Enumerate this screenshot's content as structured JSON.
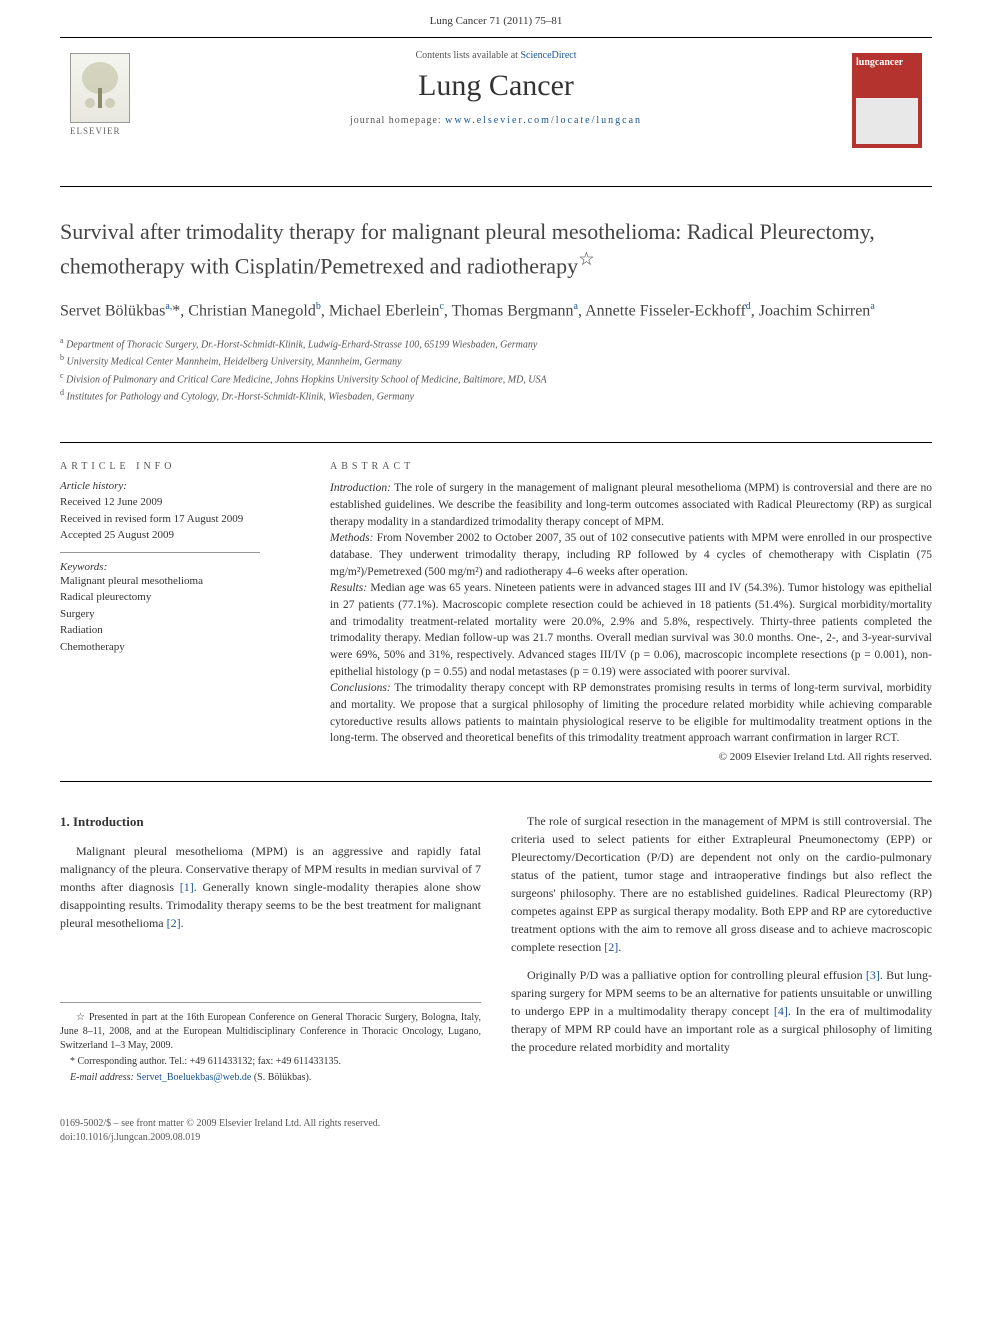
{
  "header": {
    "citation": "Lung Cancer 71 (2011) 75–81"
  },
  "masthead": {
    "contents_prefix": "Contents lists available at ",
    "contents_link": "ScienceDirect",
    "journal_title": "Lung Cancer",
    "homepage_prefix": "journal homepage: ",
    "homepage_url": "www.elsevier.com/locate/lungcan",
    "elsevier_label": "ELSEVIER",
    "cover_title": "lungcancer"
  },
  "article": {
    "title": "Survival after trimodality therapy for malignant pleural mesothelioma: Radical Pleurectomy, chemotherapy with Cisplatin/Pemetrexed and radiotherapy",
    "title_note_mark": "☆",
    "authors_html": "Servet Bölükbas<sup>a,</sup>*, Christian Manegold<sup>b</sup>, Michael Eberlein<sup>c</sup>, Thomas Bergmann<sup>a</sup>, Annette Fisseler-Eckhoff<sup>d</sup>, Joachim Schirren<sup>a</sup>",
    "affiliations": [
      {
        "mark": "a",
        "text": "Department of Thoracic Surgery, Dr.-Horst-Schmidt-Klinik, Ludwig-Erhard-Strasse 100, 65199 Wiesbaden, Germany"
      },
      {
        "mark": "b",
        "text": "University Medical Center Mannheim, Heidelberg University, Mannheim, Germany"
      },
      {
        "mark": "c",
        "text": "Division of Pulmonary and Critical Care Medicine, Johns Hopkins University School of Medicine, Baltimore, MD, USA"
      },
      {
        "mark": "d",
        "text": "Institutes for Pathology and Cytology, Dr.-Horst-Schmidt-Klinik, Wiesbaden, Germany"
      }
    ]
  },
  "info": {
    "heading": "ARTICLE INFO",
    "history_label": "Article history:",
    "history": [
      "Received 12 June 2009",
      "Received in revised form 17 August 2009",
      "Accepted 25 August 2009"
    ],
    "keywords_label": "Keywords:",
    "keywords": [
      "Malignant pleural mesothelioma",
      "Radical pleurectomy",
      "Surgery",
      "Radiation",
      "Chemotherapy"
    ]
  },
  "abstract": {
    "heading": "ABSTRACT",
    "intro_label": "Introduction:",
    "intro": " The role of surgery in the management of malignant pleural mesothelioma (MPM) is controversial and there are no established guidelines. We describe the feasibility and long-term outcomes associated with Radical Pleurectomy (RP) as surgical therapy modality in a standardized trimodality therapy concept of MPM.",
    "methods_label": "Methods:",
    "methods": " From November 2002 to October 2007, 35 out of 102 consecutive patients with MPM were enrolled in our prospective database. They underwent trimodality therapy, including RP followed by 4 cycles of chemotherapy with Cisplatin (75 mg/m²)/Pemetrexed (500 mg/m²) and radiotherapy 4–6 weeks after operation.",
    "results_label": "Results:",
    "results": " Median age was 65 years. Nineteen patients were in advanced stages III and IV (54.3%). Tumor histology was epithelial in 27 patients (77.1%). Macroscopic complete resection could be achieved in 18 patients (51.4%). Surgical morbidity/mortality and trimodality treatment-related mortality were 20.0%, 2.9% and 5.8%, respectively. Thirty-three patients completed the trimodality therapy. Median follow-up was 21.7 months. Overall median survival was 30.0 months. One-, 2-, and 3-year-survival were 69%, 50% and 31%, respectively. Advanced stages III/IV (p = 0.06), macroscopic incomplete resections (p = 0.001), non-epithelial histology (p = 0.55) and nodal metastases (p = 0.19) were associated with poorer survival.",
    "conclusions_label": "Conclusions:",
    "conclusions": " The trimodality therapy concept with RP demonstrates promising results in terms of long-term survival, morbidity and mortality. We propose that a surgical philosophy of limiting the procedure related morbidity while achieving comparable cytoreductive results allows patients to maintain physiological reserve to be eligible for multimodality treatment options in the long-term. The observed and theoretical benefits of this trimodality treatment approach warrant confirmation in larger RCT.",
    "copyright": "© 2009 Elsevier Ireland Ltd. All rights reserved."
  },
  "body": {
    "section1_heading": "1.  Introduction",
    "left_p1": "Malignant pleural mesothelioma (MPM) is an aggressive and rapidly fatal malignancy of the pleura. Conservative therapy of MPM results in median survival of 7 months after diagnosis [1]. Generally known single-modality therapies alone show disappointing results. Trimodality therapy seems to be the best treatment for malignant pleural mesothelioma [2].",
    "right_p1": "The role of surgical resection in the management of MPM is still controversial. The criteria used to select patients for either Extrapleural Pneumonectomy (EPP) or Pleurectomy/Decortication (P/D) are dependent not only on the cardio-pulmonary status of the patient, tumor stage and intraoperative findings but also reflect the surgeons' philosophy. There are no established guidelines. Radical Pleurectomy (RP) competes against EPP as surgical therapy modality. Both EPP and RP are cytoreductive treatment options with the aim to remove all gross disease and to achieve macroscopic complete resection [2].",
    "right_p2": "Originally P/D was a palliative option for controlling pleural effusion [3]. But lung-sparing surgery for MPM seems to be an alternative for patients unsuitable or unwilling to undergo EPP in a multimodality therapy concept [4]. In the era of multimodality therapy of MPM RP could have an important role as a surgical philosophy of limiting the procedure related morbidity and mortality"
  },
  "footnotes": {
    "star": "☆ Presented in part at the 16th European Conference on General Thoracic Surgery, Bologna, Italy, June 8–11, 2008, and at the European Multidisciplinary Conference in Thoracic Oncology, Lugano, Switzerland 1–3 May, 2009.",
    "corr": "* Corresponding author. Tel.: +49 611433132; fax: +49 611433135.",
    "email_label": "E-mail address: ",
    "email": "Servet_Boeluekbas@web.de",
    "email_suffix": " (S. Bölükbas)."
  },
  "footer": {
    "line1": "0169-5002/$ – see front matter © 2009 Elsevier Ireland Ltd. All rights reserved.",
    "line2": "doi:10.1016/j.lungcan.2009.08.019"
  }
}
